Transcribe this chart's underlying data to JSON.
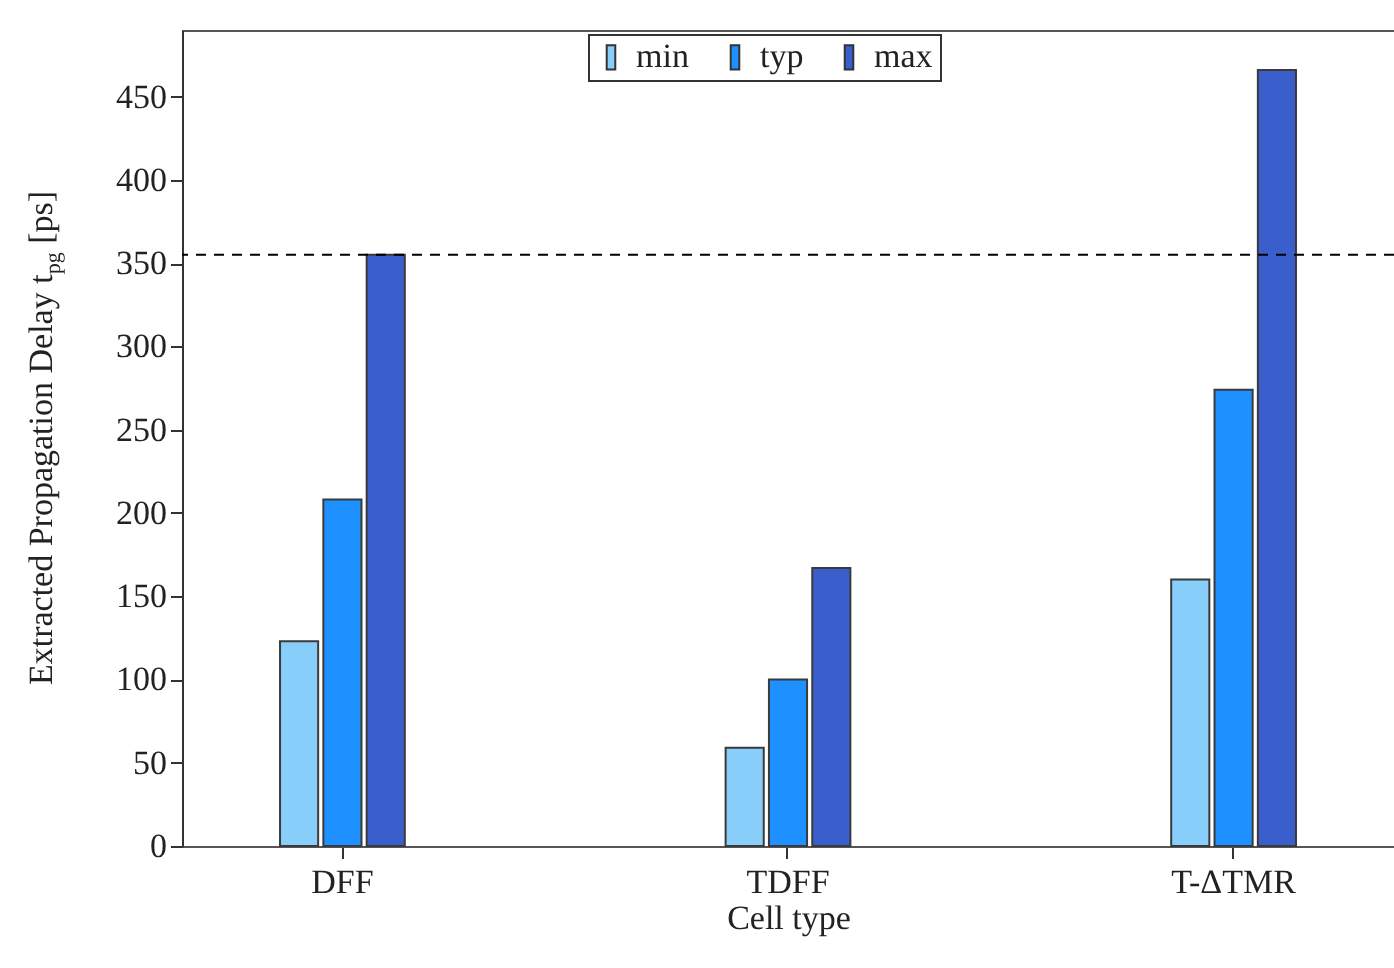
{
  "chart_data": {
    "type": "bar",
    "xlabel": "Cell type",
    "ylabel": "Extracted Propagation Delay t$_{pg}$ [ps]",
    "categories": [
      "DFF",
      "TDFF",
      "T-ΔTMR"
    ],
    "series": [
      {
        "name": "min",
        "color": "#87cefa",
        "values": [
          123,
          59,
          160
        ]
      },
      {
        "name": "typ",
        "color": "#1e90ff",
        "values": [
          208,
          100,
          274
        ]
      },
      {
        "name": "max",
        "color": "#3a5fcd",
        "values": [
          355,
          167,
          466
        ]
      }
    ],
    "ylim": [
      0,
      490
    ],
    "yticks": [
      0,
      50,
      100,
      150,
      200,
      250,
      300,
      350,
      400,
      450
    ],
    "ref_lines": [
      {
        "axis": "y",
        "value": 355,
        "color": "#000000",
        "line_style": "dashed"
      }
    ],
    "grid": false,
    "legend": "top"
  }
}
